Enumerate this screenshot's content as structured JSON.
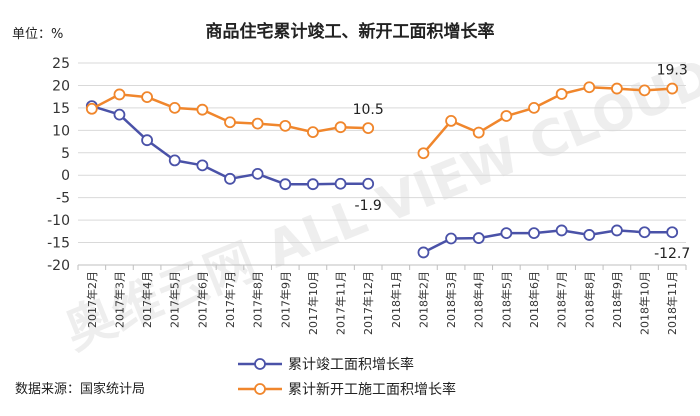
{
  "chart_data": {
    "type": "line",
    "title": "商品住宅累计竣工、新开工面积增长率",
    "unit_label": "单位：%",
    "source": "数据来源：国家统计局",
    "watermark": "奥维云网 ALL VIEW CLOUD",
    "ylim": [
      -20,
      25
    ],
    "yticks": [
      25,
      20,
      15,
      10,
      5,
      0,
      -5,
      -10,
      -15,
      -20
    ],
    "grid": true,
    "legend_position": "bottom-center",
    "categories": [
      "2017年2月",
      "2017年3月",
      "2017年4月",
      "2017年5月",
      "2017年6月",
      "2017年7月",
      "2017年8月",
      "2017年9月",
      "2017年10月",
      "2017年11月",
      "2017年12月",
      "2018年1月",
      "2018年2月",
      "2018年3月",
      "2018年4月",
      "2018年5月",
      "2018年6月",
      "2018年7月",
      "2018年8月",
      "2018年9月",
      "2018年10月",
      "2018年11月"
    ],
    "series": [
      {
        "name": "累计竣工面积增长率",
        "color": "#4a52a8",
        "values": [
          15.4,
          13.5,
          7.8,
          3.3,
          2.2,
          -0.8,
          0.3,
          -2.0,
          -2.0,
          -1.9,
          -1.9,
          null,
          -17.2,
          -14.1,
          -14.0,
          -12.9,
          -12.9,
          -12.3,
          -13.3,
          -12.3,
          -12.7,
          -12.7
        ],
        "labels": [
          {
            "index": 10,
            "text": "-1.9"
          },
          {
            "index": 21,
            "text": "-12.7"
          }
        ]
      },
      {
        "name": "累计新开工施工面积增长率",
        "color": "#f0862c",
        "values": [
          14.8,
          18.0,
          17.4,
          15.0,
          14.6,
          11.8,
          11.5,
          11.0,
          9.6,
          10.7,
          10.5,
          null,
          4.9,
          12.1,
          9.5,
          13.2,
          15.0,
          18.1,
          19.6,
          19.3,
          18.9,
          19.3
        ],
        "labels": [
          {
            "index": 10,
            "text": "10.5"
          },
          {
            "index": 21,
            "text": "19.3"
          }
        ]
      }
    ]
  }
}
